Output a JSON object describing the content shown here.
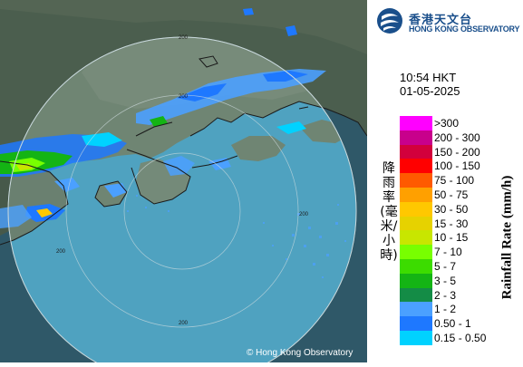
{
  "header": {
    "logo_zh": "香港天文台",
    "logo_en": "HONG KONG OBSERVATORY"
  },
  "timestamp": {
    "time": "10:54 HKT",
    "date": "01-05-2025"
  },
  "legend": {
    "title_zh": "降雨率(毫米/小時)",
    "title_en": "Rainfall Rate (mm/h)",
    "items": [
      {
        "label": ">300",
        "color": "#ff00ff"
      },
      {
        "label": "200 - 300",
        "color": "#c8008c"
      },
      {
        "label": "150 - 200",
        "color": "#d2003c"
      },
      {
        "label": "100 - 150",
        "color": "#ff0000"
      },
      {
        "label": "75 - 100",
        "color": "#ff5a00"
      },
      {
        "label": "50 - 75",
        "color": "#ffa000"
      },
      {
        "label": "30 - 50",
        "color": "#ffc800"
      },
      {
        "label": "15 - 30",
        "color": "#e6d200"
      },
      {
        "label": "10 - 15",
        "color": "#c8e600"
      },
      {
        "label": "7 - 10",
        "color": "#78ff00"
      },
      {
        "label": "5 - 7",
        "color": "#3cdc00"
      },
      {
        "label": "3 - 5",
        "color": "#14b414"
      },
      {
        "label": "2 - 3",
        "color": "#148c46"
      },
      {
        "label": "1 - 2",
        "color": "#4ba0ff"
      },
      {
        "label": "0.50 - 1",
        "color": "#1e78ff"
      },
      {
        "label": "0.15 - 0.50",
        "color": "#00d2ff"
      }
    ]
  },
  "map": {
    "range_labels": [
      "200",
      "200",
      "200",
      "200",
      "200"
    ],
    "copyright": "© Hong Kong Observatory"
  }
}
